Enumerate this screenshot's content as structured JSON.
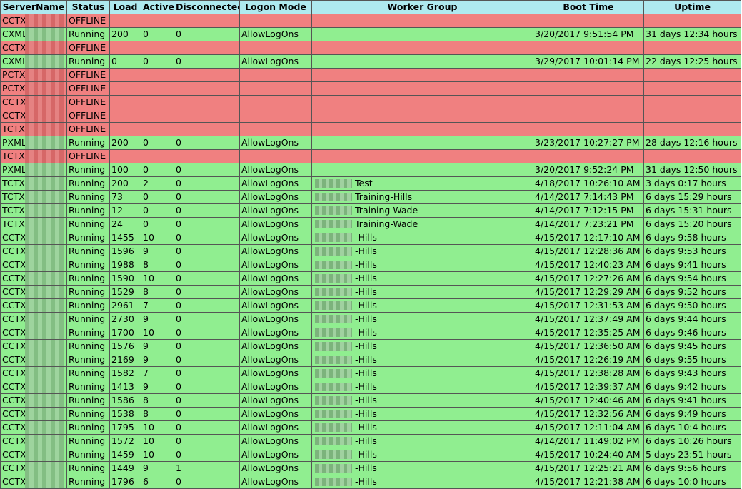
{
  "columns": [
    "ServerName",
    "Status",
    "Load",
    "Active",
    "Disconnected",
    "Logon Mode",
    "Worker Group",
    "Boot Time",
    "Uptime"
  ],
  "rows": [
    {
      "state": "offline",
      "server": "CCTX",
      "status": "OFFLINE",
      "load": "",
      "active": "",
      "disconnected": "",
      "logon": "",
      "group": "",
      "boot": "",
      "uptime": ""
    },
    {
      "state": "running",
      "server": "CXML",
      "status": "Running",
      "load": "200",
      "active": "0",
      "disconnected": "0",
      "logon": "AllowLogOns",
      "group": "",
      "boot": "3/20/2017 9:51:54 PM",
      "uptime": "31 days 12:34 hours"
    },
    {
      "state": "offline",
      "server": "CCTX",
      "status": "OFFLINE",
      "load": "",
      "active": "",
      "disconnected": "",
      "logon": "",
      "group": "",
      "boot": "",
      "uptime": ""
    },
    {
      "state": "running",
      "server": "CXML",
      "status": "Running",
      "load": "0",
      "active": "0",
      "disconnected": "0",
      "logon": "AllowLogOns",
      "group": "",
      "boot": "3/29/2017 10:01:14 PM",
      "uptime": "22 days 12:25 hours"
    },
    {
      "state": "offline",
      "server": "PCTX",
      "status": "OFFLINE",
      "load": "",
      "active": "",
      "disconnected": "",
      "logon": "",
      "group": "",
      "boot": "",
      "uptime": ""
    },
    {
      "state": "offline",
      "server": "PCTX",
      "status": "OFFLINE",
      "load": "",
      "active": "",
      "disconnected": "",
      "logon": "",
      "group": "",
      "boot": "",
      "uptime": ""
    },
    {
      "state": "offline",
      "server": "CCTX",
      "status": "OFFLINE",
      "load": "",
      "active": "",
      "disconnected": "",
      "logon": "",
      "group": "",
      "boot": "",
      "uptime": ""
    },
    {
      "state": "offline",
      "server": "CCTX",
      "status": "OFFLINE",
      "load": "",
      "active": "",
      "disconnected": "",
      "logon": "",
      "group": "",
      "boot": "",
      "uptime": ""
    },
    {
      "state": "offline",
      "server": "TCTX",
      "status": "OFFLINE",
      "load": "",
      "active": "",
      "disconnected": "",
      "logon": "",
      "group": "",
      "boot": "",
      "uptime": ""
    },
    {
      "state": "running",
      "server": "PXML",
      "status": "Running",
      "load": "200",
      "active": "0",
      "disconnected": "0",
      "logon": "AllowLogOns",
      "group": "",
      "boot": "3/23/2017 10:27:27 PM",
      "uptime": "28 days 12:16 hours"
    },
    {
      "state": "offline",
      "server": "TCTX",
      "status": "OFFLINE",
      "load": "",
      "active": "",
      "disconnected": "",
      "logon": "",
      "group": "",
      "boot": "",
      "uptime": ""
    },
    {
      "state": "running",
      "server": "PXML",
      "status": "Running",
      "load": "100",
      "active": "0",
      "disconnected": "0",
      "logon": "AllowLogOns",
      "group": "",
      "boot": "3/20/2017 9:52:24 PM",
      "uptime": "31 days 12:50 hours"
    },
    {
      "state": "running",
      "server": "TCTX",
      "status": "Running",
      "load": "200",
      "active": "2",
      "disconnected": "0",
      "logon": "AllowLogOns",
      "group": "Test",
      "boot": "4/18/2017 10:26:10 AM",
      "uptime": "3 days 0:17 hours"
    },
    {
      "state": "running",
      "server": "TCTX",
      "status": "Running",
      "load": "73",
      "active": "0",
      "disconnected": "0",
      "logon": "AllowLogOns",
      "group": "Training-Hills",
      "boot": "4/14/2017 7:14:43 PM",
      "uptime": "6 days 15:29 hours"
    },
    {
      "state": "running",
      "server": "TCTX",
      "status": "Running",
      "load": "12",
      "active": "0",
      "disconnected": "0",
      "logon": "AllowLogOns",
      "group": "Training-Wade",
      "boot": "4/14/2017 7:12:15 PM",
      "uptime": "6 days 15:31 hours"
    },
    {
      "state": "running",
      "server": "TCTX",
      "status": "Running",
      "load": "24",
      "active": "0",
      "disconnected": "0",
      "logon": "AllowLogOns",
      "group": "Training-Wade",
      "boot": "4/14/2017 7:23:21 PM",
      "uptime": "6 days 15:20 hours"
    },
    {
      "state": "running",
      "server": "CCTX",
      "status": "Running",
      "load": "1455",
      "active": "10",
      "disconnected": "0",
      "logon": "AllowLogOns",
      "group": "-Hills",
      "boot": "4/15/2017 12:17:10 AM",
      "uptime": "6 days 9:58 hours"
    },
    {
      "state": "running",
      "server": "CCTX",
      "status": "Running",
      "load": "1596",
      "active": "9",
      "disconnected": "0",
      "logon": "AllowLogOns",
      "group": "-Hills",
      "boot": "4/15/2017 12:28:36 AM",
      "uptime": "6 days 9:53 hours"
    },
    {
      "state": "running",
      "server": "CCTX",
      "status": "Running",
      "load": "1988",
      "active": "8",
      "disconnected": "0",
      "logon": "AllowLogOns",
      "group": "-Hills",
      "boot": "4/15/2017 12:40:23 AM",
      "uptime": "6 days 9:41 hours"
    },
    {
      "state": "running",
      "server": "CCTX",
      "status": "Running",
      "load": "1590",
      "active": "10",
      "disconnected": "0",
      "logon": "AllowLogOns",
      "group": "-Hills",
      "boot": "4/15/2017 12:27:26 AM",
      "uptime": "6 days 9:54 hours"
    },
    {
      "state": "running",
      "server": "CCTX",
      "status": "Running",
      "load": "1529",
      "active": "8",
      "disconnected": "0",
      "logon": "AllowLogOns",
      "group": "-Hills",
      "boot": "4/15/2017 12:29:29 AM",
      "uptime": "6 days 9:52 hours"
    },
    {
      "state": "running",
      "server": "CCTX",
      "status": "Running",
      "load": "2961",
      "active": "7",
      "disconnected": "0",
      "logon": "AllowLogOns",
      "group": "-Hills",
      "boot": "4/15/2017 12:31:53 AM",
      "uptime": "6 days 9:50 hours"
    },
    {
      "state": "running",
      "server": "CCTX",
      "status": "Running",
      "load": "2730",
      "active": "9",
      "disconnected": "0",
      "logon": "AllowLogOns",
      "group": "-Hills",
      "boot": "4/15/2017 12:37:49 AM",
      "uptime": "6 days 9:44 hours"
    },
    {
      "state": "running",
      "server": "CCTX",
      "status": "Running",
      "load": "1700",
      "active": "10",
      "disconnected": "0",
      "logon": "AllowLogOns",
      "group": "-Hills",
      "boot": "4/15/2017 12:35:25 AM",
      "uptime": "6 days 9:46 hours"
    },
    {
      "state": "running",
      "server": "CCTX",
      "status": "Running",
      "load": "1576",
      "active": "9",
      "disconnected": "0",
      "logon": "AllowLogOns",
      "group": "-Hills",
      "boot": "4/15/2017 12:36:50 AM",
      "uptime": "6 days 9:45 hours"
    },
    {
      "state": "running",
      "server": "CCTX",
      "status": "Running",
      "load": "2169",
      "active": "9",
      "disconnected": "0",
      "logon": "AllowLogOns",
      "group": "-Hills",
      "boot": "4/15/2017 12:26:19 AM",
      "uptime": "6 days 9:55 hours"
    },
    {
      "state": "running",
      "server": "CCTX",
      "status": "Running",
      "load": "1582",
      "active": "7",
      "disconnected": "0",
      "logon": "AllowLogOns",
      "group": "-Hills",
      "boot": "4/15/2017 12:38:28 AM",
      "uptime": "6 days 9:43 hours"
    },
    {
      "state": "running",
      "server": "CCTX",
      "status": "Running",
      "load": "1413",
      "active": "9",
      "disconnected": "0",
      "logon": "AllowLogOns",
      "group": "-Hills",
      "boot": "4/15/2017 12:39:37 AM",
      "uptime": "6 days 9:42 hours"
    },
    {
      "state": "running",
      "server": "CCTX",
      "status": "Running",
      "load": "1586",
      "active": "8",
      "disconnected": "0",
      "logon": "AllowLogOns",
      "group": "-Hills",
      "boot": "4/15/2017 12:40:46 AM",
      "uptime": "6 days 9:41 hours"
    },
    {
      "state": "running",
      "server": "CCTX",
      "status": "Running",
      "load": "1538",
      "active": "8",
      "disconnected": "0",
      "logon": "AllowLogOns",
      "group": "-Hills",
      "boot": "4/15/2017 12:32:56 AM",
      "uptime": "6 days 9:49 hours"
    },
    {
      "state": "running",
      "server": "CCTX",
      "status": "Running",
      "load": "1795",
      "active": "10",
      "disconnected": "0",
      "logon": "AllowLogOns",
      "group": "-Hills",
      "boot": "4/15/2017 12:11:04 AM",
      "uptime": "6 days 10:4 hours"
    },
    {
      "state": "running",
      "server": "CCTX",
      "status": "Running",
      "load": "1572",
      "active": "10",
      "disconnected": "0",
      "logon": "AllowLogOns",
      "group": "-Hills",
      "boot": "4/14/2017 11:49:02 PM",
      "uptime": "6 days 10:26 hours"
    },
    {
      "state": "running",
      "server": "CCTX",
      "status": "Running",
      "load": "1459",
      "active": "10",
      "disconnected": "0",
      "logon": "AllowLogOns",
      "group": "-Hills",
      "boot": "4/15/2017 10:24:40 AM",
      "uptime": "5 days 23:51 hours"
    },
    {
      "state": "running",
      "server": "CCTX",
      "status": "Running",
      "load": "1449",
      "active": "9",
      "disconnected": "1",
      "logon": "AllowLogOns",
      "group": "-Hills",
      "boot": "4/15/2017 12:25:21 AM",
      "uptime": "6 days 9:56 hours"
    },
    {
      "state": "running",
      "server": "CCTX",
      "status": "Running",
      "load": "1796",
      "active": "6",
      "disconnected": "0",
      "logon": "AllowLogOns",
      "group": "-Hills",
      "boot": "4/15/2017 12:21:38 AM",
      "uptime": "6 days 10:0 hours"
    }
  ],
  "colors": {
    "header_bg": "#aee9ef",
    "offline_bg": "#f08080",
    "running_bg": "#90ee90"
  }
}
